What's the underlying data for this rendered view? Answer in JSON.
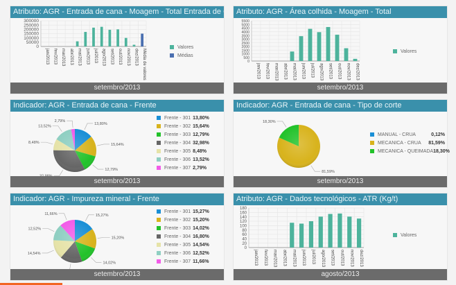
{
  "colors": {
    "header": "#3a90ab",
    "footer": "#6b6b6b",
    "bar": "#4db39c",
    "average_bar": "#4a6fb0",
    "accent": "#f26522"
  },
  "panels": [
    {
      "id": "entrada-cana-total",
      "title": "Atributo: AGR - Entrada de cana - Moagem - Total Entrada de Cana",
      "footer": "setembro/2013"
    },
    {
      "id": "area-colhida",
      "title": "Atributo: AGR - Área colhida - Moagem - Total",
      "footer": "setembro/2013"
    },
    {
      "id": "entrada-cana-frente",
      "title": "Indicador: AGR - Entrada de cana - Frente",
      "footer": "setembro/2013"
    },
    {
      "id": "tipo-corte",
      "title": "Indicador: AGR - Entrada de cana - Tipo de corte",
      "footer": "setembro/2013"
    },
    {
      "id": "impureza-mineral",
      "title": "Indicador: AGR - Impureza mineral - Frente",
      "footer": "setembro/2013"
    },
    {
      "id": "atr",
      "title": "Atributo: AGR - Dados tecnológicos - ATR (Kg/t)",
      "footer": "agosto/2013"
    }
  ],
  "chart_data": [
    {
      "type": "bar",
      "title": "Atributo: AGR - Entrada de cana - Moagem - Total Entrada de Cana",
      "categories": [
        "jan/2013",
        "fev/2013",
        "mar/2013",
        "abr/2013",
        "mai/2013",
        "jun/2013",
        "jul/2013",
        "ago/2013",
        "set/2013",
        "out/2013",
        "nov/2013",
        "dez/2013",
        "Média de valores"
      ],
      "series": [
        {
          "name": "Valores",
          "color": "#4db39c",
          "values": [
            0,
            0,
            0,
            0,
            60000,
            170000,
            220000,
            230000,
            195000,
            200000,
            100000,
            20000,
            null
          ]
        },
        {
          "name": "Médias",
          "color": "#4a6fb0",
          "values": [
            null,
            null,
            null,
            null,
            null,
            null,
            null,
            null,
            null,
            null,
            null,
            null,
            150000
          ]
        }
      ],
      "yticks": [
        0,
        50000,
        100000,
        150000,
        200000,
        250000,
        300000
      ],
      "ylim": [
        0,
        300000
      ],
      "grid": true,
      "legend": "right"
    },
    {
      "type": "bar",
      "title": "Atributo: AGR - Área colhida - Moagem - Total",
      "categories": [
        "jan/2013",
        "fev/2013",
        "mar/2013",
        "abr/2013",
        "mai/2013",
        "jun/2013",
        "jul/2013",
        "ago/2013",
        "set/2013",
        "out/2013",
        "nov/2013",
        "dez/2013"
      ],
      "series": [
        {
          "name": "Valores",
          "color": "#4db39c",
          "values": [
            0,
            0,
            0,
            0,
            1300,
            3400,
            4400,
            3950,
            4650,
            3600,
            1750,
            300
          ]
        }
      ],
      "yticks": [
        0,
        500,
        1000,
        1500,
        2000,
        2500,
        3000,
        3500,
        4000,
        4500,
        5000,
        5500
      ],
      "ylim": [
        0,
        5500
      ],
      "grid": true,
      "legend": "right"
    },
    {
      "type": "pie",
      "title": "Indicador: AGR - Entrada de cana - Frente",
      "slices": [
        {
          "label": "Frente - 301",
          "value": 13.8,
          "display": "13,80%",
          "color": "#1a8fd6"
        },
        {
          "label": "Frente - 302",
          "value": 15.64,
          "display": "15,64%",
          "color": "#d8b31c"
        },
        {
          "label": "Frente - 303",
          "value": 12.79,
          "display": "12,79%",
          "color": "#22c22a"
        },
        {
          "label": "Frente - 304",
          "value": 32.98,
          "display": "32,98%",
          "color": "#666666"
        },
        {
          "label": "Frente - 305",
          "value": 8.48,
          "display": "8,48%",
          "color": "#e6e3a8"
        },
        {
          "label": "Frente - 306",
          "value": 13.52,
          "display": "13,52%",
          "color": "#8fcfc2"
        },
        {
          "label": "Frente - 307",
          "value": 2.79,
          "display": "2,79%",
          "color": "#f25ce8"
        }
      ],
      "legend": "right"
    },
    {
      "type": "pie",
      "title": "Indicador: AGR - Entrada de cana - Tipo de corte",
      "slices": [
        {
          "label": "MANUAL - CRUA",
          "value": 0.12,
          "display": "0,12%",
          "color": "#1a8fd6"
        },
        {
          "label": "MECANICA - CRUA",
          "value": 81.59,
          "display": "81,59%",
          "color": "#d8b31c"
        },
        {
          "label": "MECANICA - QUEIMADA",
          "value": 18.3,
          "display": "18,30%",
          "color": "#22c22a"
        }
      ],
      "legend": "right"
    },
    {
      "type": "pie",
      "title": "Indicador: AGR - Impureza mineral - Frente",
      "slices": [
        {
          "label": "Frente - 301",
          "value": 15.27,
          "display": "15,27%",
          "color": "#1a8fd6"
        },
        {
          "label": "Frente - 302",
          "value": 15.2,
          "display": "15,20%",
          "color": "#d8b31c"
        },
        {
          "label": "Frente - 303",
          "value": 14.02,
          "display": "14,02%",
          "color": "#22c22a"
        },
        {
          "label": "Frente - 304",
          "value": 16.8,
          "display": "16,80%",
          "color": "#666666"
        },
        {
          "label": "Frente - 305",
          "value": 14.54,
          "display": "14,54%",
          "color": "#e6e3a8"
        },
        {
          "label": "Frente - 306",
          "value": 12.52,
          "display": "12,52%",
          "color": "#8fcfc2"
        },
        {
          "label": "Frente - 307",
          "value": 11.66,
          "display": "11,66%",
          "color": "#f25ce8"
        }
      ],
      "legend": "right"
    },
    {
      "type": "bar",
      "title": "Atributo: AGR - Dados tecnológicos - ATR (Kg/t)",
      "categories": [
        "jan/2013",
        "fev/2013",
        "mar/2013",
        "abr/2013",
        "mai/2013",
        "jun/2013",
        "jul/2013",
        "ago/2013",
        "set/2013",
        "out/2013",
        "nov/2013",
        "dez/2013"
      ],
      "series": [
        {
          "name": "Valores",
          "color": "#4db39c",
          "values": [
            0,
            0,
            0,
            0,
            113,
            109,
            120,
            141,
            153,
            155,
            141,
            132
          ]
        }
      ],
      "yticks": [
        0,
        20,
        40,
        60,
        80,
        100,
        120,
        140,
        160,
        180
      ],
      "ylim": [
        0,
        180
      ],
      "grid": true,
      "legend": "right"
    }
  ]
}
